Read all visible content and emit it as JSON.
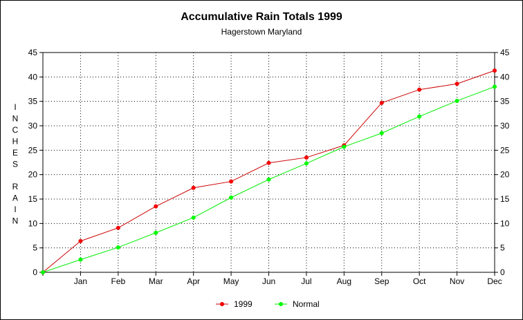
{
  "chart_data": {
    "type": "line",
    "title": "Accumulative Rain Totals 1999",
    "subtitle": "Hagerstown Maryland",
    "xlabel": "",
    "ylabel": "INCHES RAIN",
    "categories": [
      "",
      "Jan",
      "Feb",
      "Mar",
      "Apr",
      "May",
      "Jun",
      "Jul",
      "Aug",
      "Sep",
      "Oct",
      "Nov",
      "Dec"
    ],
    "ylim": [
      0,
      45
    ],
    "yticks": [
      0,
      5,
      10,
      15,
      20,
      25,
      30,
      35,
      40,
      45
    ],
    "grid": true,
    "legend_position": "bottom",
    "series": [
      {
        "name": "1999",
        "color": "#cc0000",
        "marker_color": "#ff0000",
        "values": [
          0,
          6.4,
          9.1,
          13.5,
          17.3,
          18.6,
          22.4,
          23.5,
          26.0,
          34.7,
          37.4,
          38.6,
          41.3
        ]
      },
      {
        "name": "Normal",
        "color": "#00ee00",
        "marker_color": "#00ff00",
        "values": [
          0,
          2.6,
          5.1,
          8.1,
          11.2,
          15.3,
          19.0,
          22.3,
          25.7,
          28.5,
          31.9,
          35.1,
          38.0
        ]
      }
    ]
  }
}
